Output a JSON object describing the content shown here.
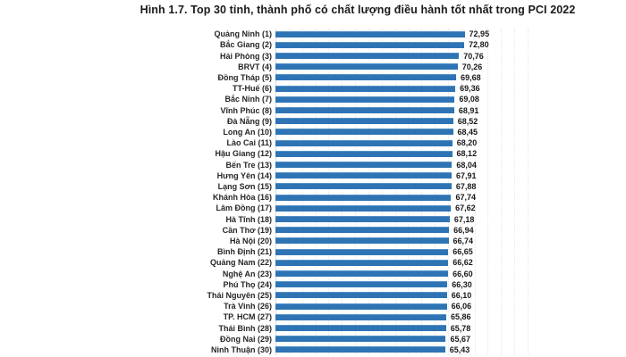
{
  "title": "Hình 1.7. Top 30 tỉnh, thành phố có chất lượng điều hành tốt nhất trong PCI 2022",
  "chart_data": {
    "type": "bar",
    "orientation": "horizontal",
    "title": "Hình 1.7. Top 30 tỉnh, thành phố có chất lượng điều hành tốt nhất trong PCI 2022",
    "categories": [
      "Quảng Ninh (1)",
      "Bắc Giang (2)",
      "Hải Phòng (3)",
      "BRVT (4)",
      "Đồng Tháp (5)",
      "TT-Huế (6)",
      "Bắc Ninh (7)",
      "Vĩnh Phúc (8)",
      "Đà Nẵng (9)",
      "Long An (10)",
      "Lào Cai (11)",
      "Hậu Giang (12)",
      "Bến Tre (13)",
      "Hưng Yên (14)",
      "Lạng Sơn (15)",
      "Khánh Hòa (16)",
      "Lâm Đồng (17)",
      "Hà Tĩnh (18)",
      "Cần Thơ (19)",
      "Hà Nội (20)",
      "Bình Định (21)",
      "Quảng Nam (22)",
      "Nghệ An (23)",
      "Phú Thọ (24)",
      "Thái Nguyên (25)",
      "Trà Vinh (26)",
      "TP. HCM (27)",
      "Thái Bình (28)",
      "Đồng Nai (29)",
      "Ninh Thuận (30)"
    ],
    "values": [
      72.95,
      72.8,
      70.76,
      70.26,
      69.68,
      69.36,
      69.08,
      68.91,
      68.52,
      68.45,
      68.2,
      68.12,
      68.04,
      67.91,
      67.88,
      67.74,
      67.62,
      67.18,
      66.94,
      66.74,
      66.65,
      66.62,
      66.6,
      66.3,
      66.1,
      66.06,
      65.86,
      65.78,
      65.67,
      65.43
    ],
    "value_labels": [
      "72,95",
      "72,80",
      "70,76",
      "70,26",
      "69,68",
      "69,36",
      "69,08",
      "68,91",
      "68,52",
      "68,45",
      "68,20",
      "68,12",
      "68,04",
      "67,91",
      "67,88",
      "67,74",
      "67,62",
      "67,18",
      "66,94",
      "66,74",
      "66,65",
      "66,62",
      "66,60",
      "66,30",
      "66,10",
      "66,06",
      "65,86",
      "65,78",
      "65,67",
      "65,43"
    ],
    "xlabel": "",
    "ylabel": "",
    "xlim": [
      0,
      97
    ],
    "grid": "vertical-dotted-gridlines",
    "gridline_count": 19,
    "legend": "none",
    "bar_color": "#2e74b5",
    "gridline_color": "#e7e7e7",
    "value_label_position": "end-of-bar"
  }
}
